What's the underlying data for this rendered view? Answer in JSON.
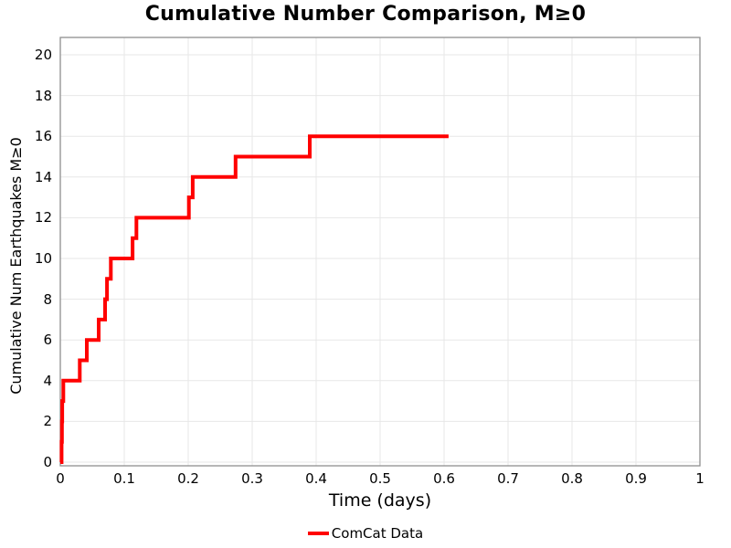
{
  "title": "Cumulative Number Comparison, M≥0",
  "chart_data": {
    "type": "line",
    "subtype": "cumulative-step",
    "title": "Cumulative Number Comparison, M≥0",
    "xlabel": "Time (days)",
    "ylabel": "Cumulative Num Earthquakes M≥0",
    "xlim": [
      0,
      1
    ],
    "ylim": [
      0,
      20
    ],
    "grid": true,
    "frame": true,
    "xticks": {
      "values": [
        0,
        0.1,
        0.2,
        0.3,
        0.4,
        0.5,
        0.6,
        0.7,
        0.8,
        0.9,
        1
      ],
      "labels": [
        "0",
        "0.1",
        "0.2",
        "0.3",
        "0.4",
        "0.5",
        "0.6",
        "0.7",
        "0.8",
        "0.9",
        "1"
      ]
    },
    "yticks": {
      "values": [
        0,
        2,
        4,
        6,
        8,
        10,
        12,
        14,
        16,
        18,
        20
      ],
      "labels": [
        "0",
        "2",
        "4",
        "6",
        "8",
        "10",
        "12",
        "14",
        "16",
        "18",
        "20"
      ]
    },
    "legend": {
      "position": "bottom-center",
      "entries": [
        {
          "label": "ComCat Data",
          "color": "#ff0000"
        }
      ]
    },
    "series": [
      {
        "name": "ComCat Data",
        "color": "#ff0000",
        "line_width": 4,
        "start": [
          0,
          0
        ],
        "events": [
          [
            0.002,
            1
          ],
          [
            0.0025,
            2
          ],
          [
            0.003,
            3
          ],
          [
            0.0047,
            4
          ],
          [
            0.0304,
            5
          ],
          [
            0.0414,
            6
          ],
          [
            0.06,
            7
          ],
          [
            0.07,
            8
          ],
          [
            0.073,
            9
          ],
          [
            0.079,
            10
          ],
          [
            0.113,
            11
          ],
          [
            0.119,
            12
          ],
          [
            0.201,
            13
          ],
          [
            0.207,
            14
          ],
          [
            0.274,
            15
          ],
          [
            0.39,
            16
          ]
        ],
        "end_x": 0.607
      }
    ]
  },
  "colors": {
    "line": "#ff0000",
    "grid": "#e7e7e7",
    "frame": "#8f8f8f",
    "text": "#000000",
    "background": "#ffffff"
  }
}
